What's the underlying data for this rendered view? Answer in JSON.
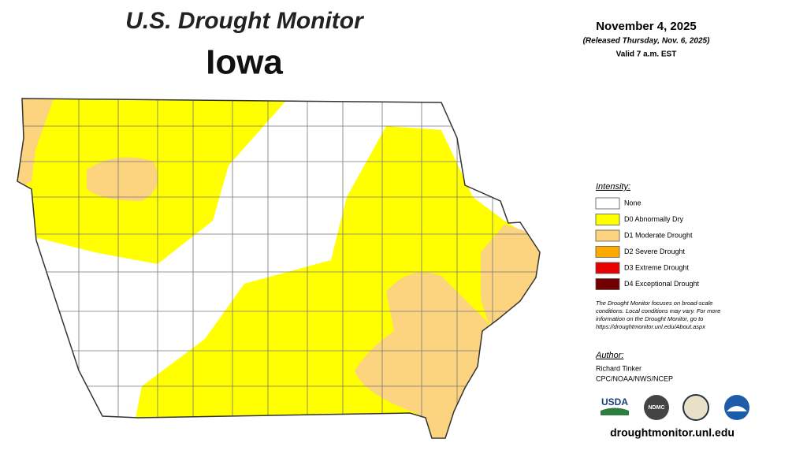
{
  "header": {
    "title": "U.S. Drought Monitor",
    "state": "Iowa",
    "date": "November 4, 2025",
    "released": "(Released Thursday, Nov. 6, 2025)",
    "valid": "Valid 7 a.m. EST"
  },
  "legend": {
    "title": "Intensity:",
    "items": [
      {
        "label": "None",
        "color": "#ffffff"
      },
      {
        "label": "D0 Abnormally Dry",
        "color": "#ffff00"
      },
      {
        "label": "D1 Moderate Drought",
        "color": "#fcd37f"
      },
      {
        "label": "D2 Severe Drought",
        "color": "#ffaa00"
      },
      {
        "label": "D3 Extreme Drought",
        "color": "#e60000"
      },
      {
        "label": "D4 Exceptional Drought",
        "color": "#730000"
      }
    ]
  },
  "note": [
    "The Drought Monitor focuses on broad-scale",
    "conditions. Local conditions may vary. For more",
    "information on the Drought Monitor, go to",
    "https://droughtmonitor.unl.edu/About.aspx"
  ],
  "author": {
    "label": "Author:",
    "name": "Richard Tinker",
    "org": "CPC/NOAA/NWS/NCEP"
  },
  "logos": [
    "USDA",
    "NDMC"
  ],
  "url": "droughtmonitor.unl.edu"
}
